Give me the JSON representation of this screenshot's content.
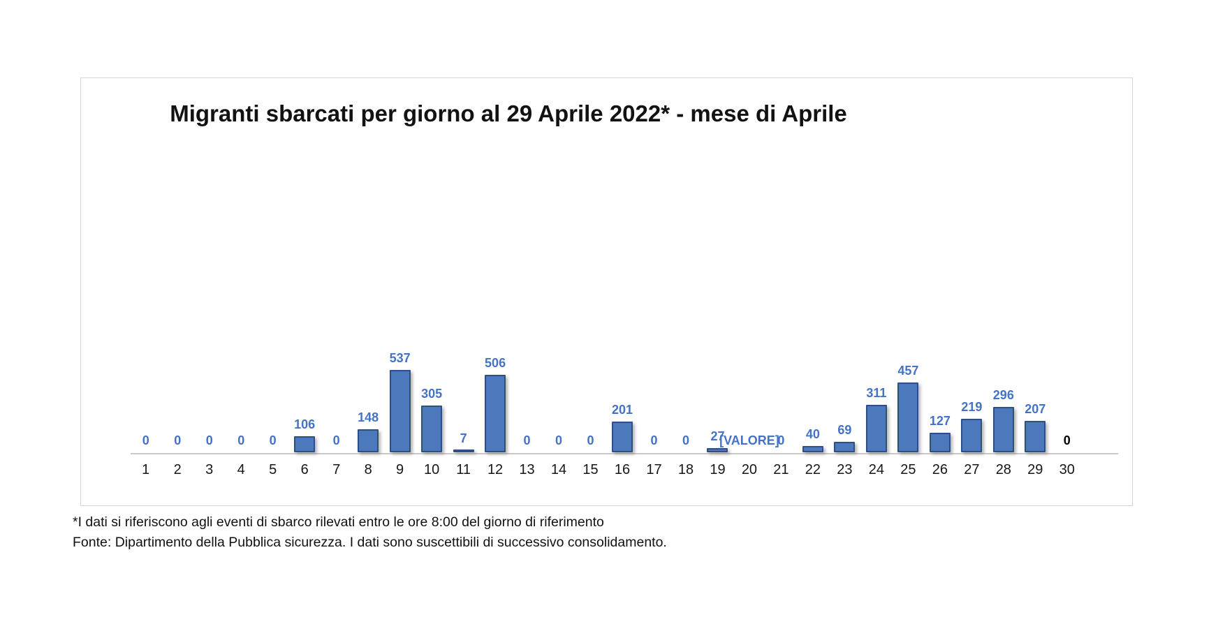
{
  "chart": {
    "title": "Migranti sbarcati per giorno al 29 Aprile 2022* - mese di Aprile",
    "footnote_line1": "*I dati si riferiscono agli eventi di sbarco rilevati entro le ore 8:00 del giorno di riferimento",
    "footnote_line2": "Fonte: Dipartimento della Pubblica sicurezza. I dati sono suscettibili di successivo consolidamento."
  },
  "chart_data": {
    "type": "bar",
    "title": "Migranti sbarcati per giorno al 29 Aprile 2022* - mese di Aprile",
    "xlabel": "",
    "ylabel": "",
    "categories": [
      1,
      2,
      3,
      4,
      5,
      6,
      7,
      8,
      9,
      10,
      11,
      12,
      13,
      14,
      15,
      16,
      17,
      18,
      19,
      20,
      21,
      22,
      23,
      24,
      25,
      26,
      27,
      28,
      29,
      30
    ],
    "values": [
      0,
      0,
      0,
      0,
      0,
      106,
      0,
      148,
      537,
      305,
      7,
      506,
      0,
      0,
      0,
      201,
      0,
      0,
      27,
      0,
      0,
      40,
      69,
      311,
      457,
      127,
      219,
      296,
      207,
      0
    ],
    "data_labels": [
      "0",
      "0",
      "0",
      "0",
      "0",
      "106",
      "0",
      "148",
      "537",
      "305",
      "7",
      "506",
      "0",
      "0",
      "0",
      "201",
      "0",
      "0",
      "27",
      "[VALORE]",
      "0",
      "40",
      "69",
      "311",
      "457",
      "127",
      "219",
      "296",
      "207",
      "0"
    ],
    "emphasized_label_index": 29,
    "ylim": [
      0,
      2450
    ],
    "grid": "off",
    "y_axis_visible": false,
    "legend": "none",
    "extra_empty_category_slots": 1,
    "colors": {
      "bar_fill": "#4b79bb",
      "bar_border": "#2d4e87",
      "data_label": "#4472c4",
      "emphasized_data_label": "#000000",
      "axis_line": "#c9c9c9",
      "chart_border": "#d6d6d6",
      "title_text": "#121212",
      "footnote_text": "#111111"
    }
  }
}
